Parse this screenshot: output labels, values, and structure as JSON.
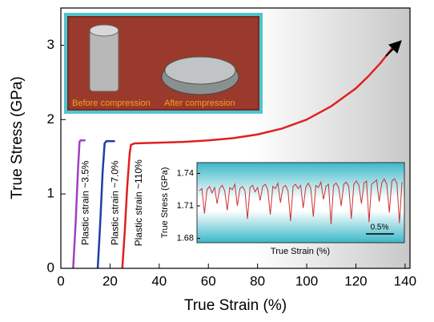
{
  "chart_data": [
    {
      "type": "line",
      "x_label": "True Strain (%)",
      "y_label": "True Stress (GPa)",
      "xlim": [
        0,
        142
      ],
      "ylim": [
        0,
        3.5
      ],
      "xticks": [
        0,
        20,
        40,
        60,
        80,
        100,
        120,
        140
      ],
      "yticks": [
        0,
        1,
        2,
        3
      ],
      "series": [
        {
          "color": "#a040c0",
          "x": [
            5,
            6,
            7,
            7.6,
            8,
            10
          ],
          "values": [
            0,
            0.6,
            1.35,
            1.7,
            1.72,
            1.72
          ]
        },
        {
          "color": "#1f3ea8",
          "x": [
            15,
            16,
            17,
            17.8,
            18.5,
            22
          ],
          "values": [
            0,
            0.6,
            1.3,
            1.68,
            1.71,
            1.71
          ]
        },
        {
          "color": "#e02020",
          "x": [
            25,
            26,
            27,
            28,
            28.5,
            30,
            40,
            50,
            60,
            70,
            80,
            90,
            100,
            110,
            120,
            125,
            130,
            135
          ],
          "values": [
            0,
            0.5,
            1.1,
            1.55,
            1.66,
            1.68,
            1.69,
            1.7,
            1.72,
            1.75,
            1.8,
            1.88,
            2.0,
            2.18,
            2.42,
            2.58,
            2.76,
            2.97
          ]
        }
      ],
      "annotations": [
        {
          "text": "Plastic strain ~3.5%",
          "x": 7.6,
          "y": 0.88
        },
        {
          "text": "Plastic strain ~7.0%",
          "x": 19.6,
          "y": 0.88
        },
        {
          "text": "Plastic strain ~110%",
          "x": 29.2,
          "y": 0.88
        }
      ],
      "photo_labels": [
        "Before compression",
        "After compression"
      ]
    },
    {
      "type": "line",
      "x_label": "True Strain (%)",
      "y_label": "True Stress (GPa)",
      "ylim": [
        1.676,
        1.75
      ],
      "yticks": [
        1.68,
        1.71,
        1.74
      ],
      "scale_bar": "0.5%",
      "color": "#d03030",
      "values": [
        1.724,
        1.726,
        1.703,
        1.725,
        1.728,
        1.722,
        1.727,
        1.712,
        1.726,
        1.729,
        1.724,
        1.706,
        1.727,
        1.725,
        1.73,
        1.71,
        1.726,
        1.728,
        1.724,
        1.698,
        1.727,
        1.729,
        1.723,
        1.727,
        1.715,
        1.728,
        1.73,
        1.725,
        1.702,
        1.728,
        1.726,
        1.731,
        1.713,
        1.727,
        1.729,
        1.724,
        1.696,
        1.728,
        1.73,
        1.726,
        1.729,
        1.708,
        1.727,
        1.731,
        1.726,
        1.7,
        1.729,
        1.727,
        1.732,
        1.716,
        1.728,
        1.73,
        1.693,
        1.729,
        1.731,
        1.727,
        1.71,
        1.73,
        1.732,
        1.728,
        1.698,
        1.73,
        1.733,
        1.729,
        1.712,
        1.731,
        1.733,
        1.695,
        1.73,
        1.732,
        1.734,
        1.714,
        1.731,
        1.735,
        1.73,
        1.704,
        1.733,
        1.735,
        1.731,
        1.694,
        1.732
      ]
    }
  ]
}
